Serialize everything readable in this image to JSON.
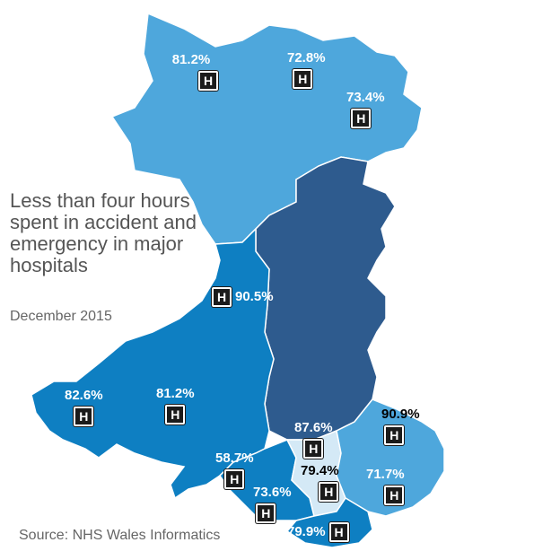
{
  "title": "Less than four hours spent in accident and emergency in major hospitals",
  "subtitle": "December 2015",
  "source": "Source: NHS Wales Informatics",
  "icon": "hospital-h-icon",
  "icon_glyph": "H",
  "colors": {
    "north": "#4ea7dc",
    "central": "#2e5b8e",
    "west": "#0e7fc2",
    "south_east": "#4ea7dc",
    "cardiff_region": "#0e7fc2",
    "central_south": "#d4e9f6",
    "border": "#ffffff"
  },
  "hospitals": [
    {
      "id": "ysbyty-gwynedd",
      "value": "81.2%"
    },
    {
      "id": "glan-clwyd",
      "value": "72.8%"
    },
    {
      "id": "wrexham-maelor",
      "value": "73.4%"
    },
    {
      "id": "bronglais",
      "value": "90.5%"
    },
    {
      "id": "withybush",
      "value": "82.6%"
    },
    {
      "id": "glangwili",
      "value": "81.2%"
    },
    {
      "id": "prince-philip",
      "value": "58.7%"
    },
    {
      "id": "morriston",
      "value": "73.6%"
    },
    {
      "id": "prince-charles",
      "value": "87.6%"
    },
    {
      "id": "nevill-hall",
      "value": "90.9%"
    },
    {
      "id": "royal-glamorgan",
      "value": "79.4%"
    },
    {
      "id": "royal-gwent",
      "value": "71.7%"
    },
    {
      "id": "princess-of-wales",
      "value": "79.9%"
    }
  ]
}
